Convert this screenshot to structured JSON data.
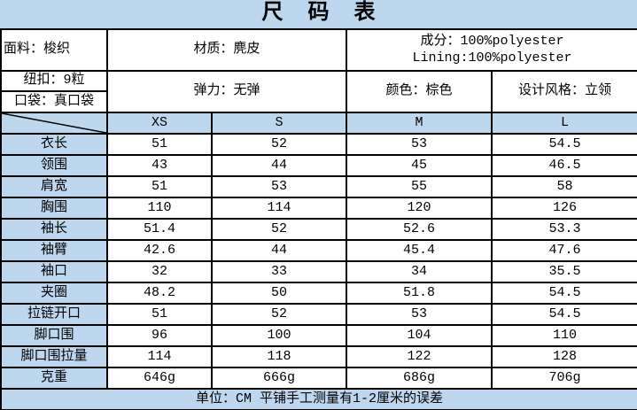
{
  "title": "尺　码　表",
  "colors": {
    "header_bg": "#bdd7ee",
    "cell_bg": "#ffffff",
    "border": "#000000",
    "text": "#000000"
  },
  "info": {
    "fabric": "面料：梭织",
    "material": "材质：麂皮",
    "composition_line1": "成分：100%polyester",
    "composition_line2": "Lining:100%polyester",
    "buttons": "纽扣：9粒",
    "pocket": "口袋：真口袋",
    "elasticity": "弹力：无弹",
    "color": "颜色：棕色",
    "design_style": "设计风格：立领"
  },
  "size_table": {
    "columns": [
      "XS",
      "S",
      "M",
      "L"
    ],
    "rows": [
      {
        "label": "衣长",
        "values": [
          "51",
          "52",
          "53",
          "54.5"
        ]
      },
      {
        "label": "领围",
        "values": [
          "43",
          "44",
          "45",
          "46.5"
        ]
      },
      {
        "label": "肩宽",
        "values": [
          "51",
          "53",
          "55",
          "58"
        ]
      },
      {
        "label": "胸围",
        "values": [
          "110",
          "114",
          "120",
          "126"
        ]
      },
      {
        "label": "袖长",
        "values": [
          "51.4",
          "52",
          "52.6",
          "53.3"
        ]
      },
      {
        "label": "袖臂",
        "values": [
          "42.6",
          "44",
          "45.4",
          "47.6"
        ]
      },
      {
        "label": "袖口",
        "values": [
          "32",
          "33",
          "34",
          "35.5"
        ]
      },
      {
        "label": "夹圈",
        "values": [
          "48.2",
          "50",
          "51.8",
          "54.5"
        ]
      },
      {
        "label": "拉链开口",
        "values": [
          "51",
          "52",
          "53",
          "54.5"
        ]
      },
      {
        "label": "脚口围",
        "values": [
          "96",
          "100",
          "104",
          "110"
        ]
      },
      {
        "label": "脚口围拉量",
        "values": [
          "114",
          "118",
          "122",
          "128"
        ]
      },
      {
        "label": "克重",
        "values": [
          "646g",
          "666g",
          "686g",
          "706g"
        ]
      }
    ]
  },
  "footer_note": "单位：CM 平铺手工测量有1-2厘米的误差"
}
